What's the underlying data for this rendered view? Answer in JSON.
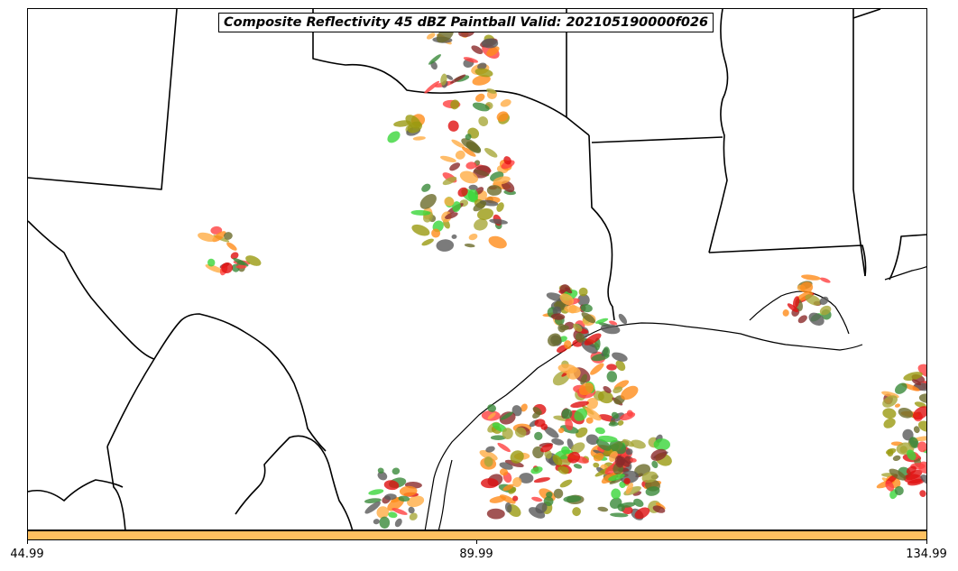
{
  "title": "Composite Reflectivity 45 dBZ Paintball Valid: 202105190000f026",
  "colorbar": {
    "color": "#ffc060",
    "ticks": [
      "44.99",
      "89.99",
      "134.99"
    ]
  },
  "member_colors": [
    "#ff4040",
    "#ff8c1a",
    "#ffad45",
    "#8b2a2a",
    "#3a8a3a",
    "#3ad63a",
    "#a8a83a",
    "#5a5a5a",
    "#6b6b2a",
    "#e01010",
    "#9a9a10"
  ],
  "map": {
    "region": "Texas / Louisiana / Gulf of Mexico",
    "layers": [
      "state-borders",
      "coastline",
      "county-lines",
      "ensemble-paintball-cells"
    ]
  }
}
